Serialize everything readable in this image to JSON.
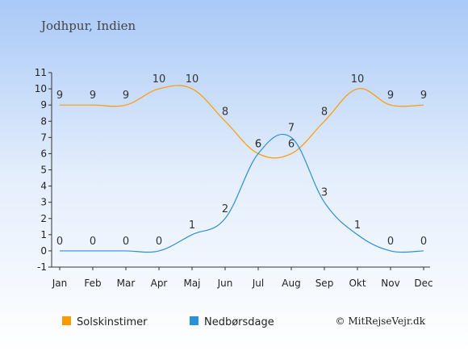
{
  "chart_data": {
    "type": "line",
    "title": "Jodhpur, Indien",
    "categories": [
      "Jan",
      "Feb",
      "Mar",
      "Apr",
      "Maj",
      "Jun",
      "Jul",
      "Aug",
      "Sep",
      "Okt",
      "Nov",
      "Dec"
    ],
    "series": [
      {
        "name": "Solskinstimer",
        "color": "#ff9900",
        "values": [
          9,
          9,
          9,
          10,
          10,
          8,
          6,
          6,
          8,
          10,
          9,
          9
        ],
        "curve": [
          9,
          9,
          9,
          10,
          10,
          8,
          6,
          6,
          8,
          10,
          9,
          9
        ]
      },
      {
        "name": "Nedbørsdage",
        "color": "#2a8fdc",
        "values": [
          0,
          0,
          0,
          0,
          1,
          2,
          6,
          7,
          3,
          1,
          0,
          0
        ],
        "curve": [
          0,
          0,
          0,
          0,
          1,
          2,
          6,
          7,
          3,
          1,
          0,
          0
        ]
      }
    ],
    "ylim": [
      -1,
      11
    ],
    "yticks": [
      -1,
      0,
      1,
      2,
      3,
      4,
      5,
      6,
      7,
      8,
      9,
      10,
      11
    ],
    "grid": false,
    "legend": "bottom-left"
  },
  "credit": "© MitRejseVejr.dk"
}
